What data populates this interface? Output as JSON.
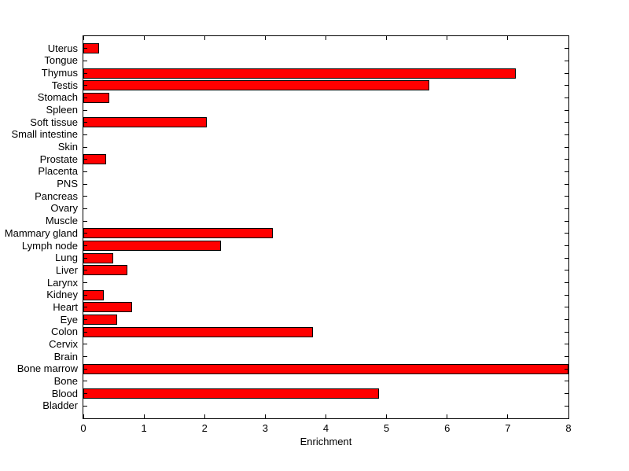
{
  "figure": {
    "background": "#FFFFFF"
  },
  "chart_data": {
    "type": "bar",
    "orientation": "horizontal",
    "title": "",
    "xlabel": "Enrichment",
    "ylabel": "",
    "xlim": [
      0,
      8
    ],
    "xticks": [
      0,
      1,
      2,
      3,
      4,
      5,
      6,
      7,
      8
    ],
    "grid": false,
    "legend": false,
    "box": true,
    "tick_direction": "in",
    "bar_fill_color": "#FF0000",
    "bar_edge_color": "#000000",
    "axis_color": "#000000",
    "categories_order": "top-to-bottom",
    "categories": [
      "Uterus",
      "Tongue",
      "Thymus",
      "Testis",
      "Stomach",
      "Spleen",
      "Soft tissue",
      "Small intestine",
      "Skin",
      "Prostate",
      "Placenta",
      "PNS",
      "Pancreas",
      "Ovary",
      "Muscle",
      "Mammary gland",
      "Lymph node",
      "Lung",
      "Liver",
      "Larynx",
      "Kidney",
      "Heart",
      "Eye",
      "Colon",
      "Cervix",
      "Brain",
      "Bone marrow",
      "Bone",
      "Blood",
      "Bladder"
    ],
    "values": [
      0.26,
      0,
      7.13,
      5.71,
      0.43,
      0,
      2.03,
      0,
      0,
      0.37,
      0,
      0,
      0,
      0,
      0,
      3.12,
      2.27,
      0.49,
      0.72,
      0,
      0.34,
      0.81,
      0.56,
      3.78,
      0,
      0,
      8.0,
      0,
      4.88,
      0
    ]
  }
}
